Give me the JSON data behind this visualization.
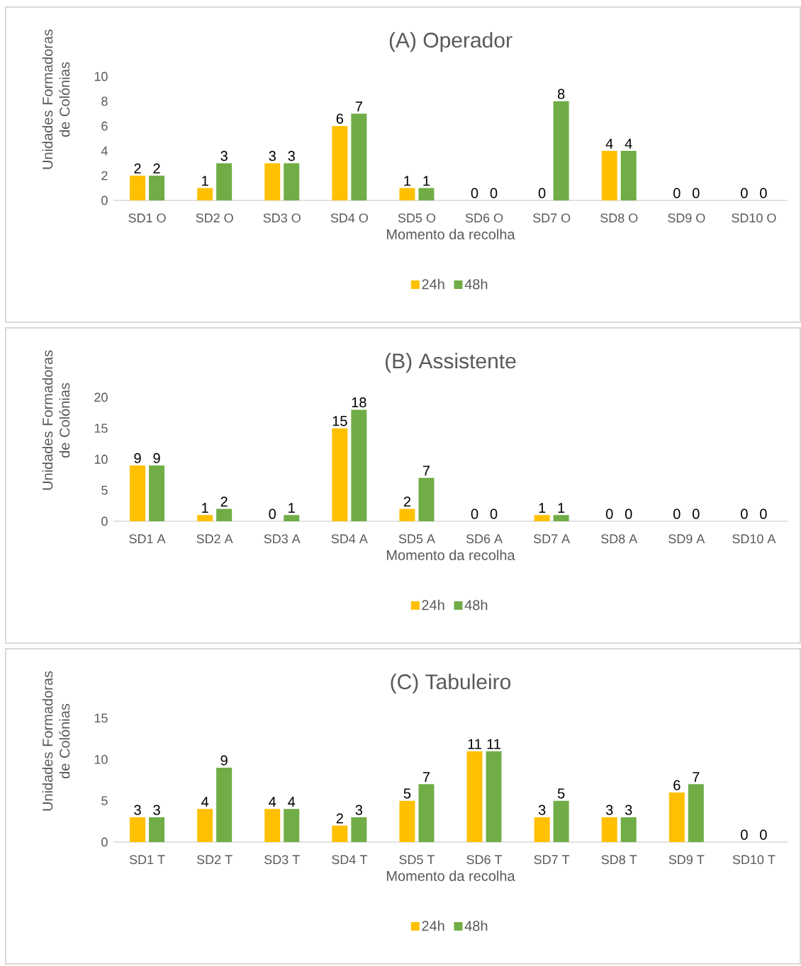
{
  "chart_data": [
    {
      "type": "bar",
      "title": "(A) Operador",
      "xlabel": "Momento da recolha",
      "ylabel": "Unidades Formadoras de Colónias",
      "categories": [
        "SD1 O",
        "SD2 O",
        "SD3 O",
        "SD4 O",
        "SD5 O",
        "SD6 O",
        "SD7 O",
        "SD8 O",
        "SD9 O",
        "SD10 O"
      ],
      "series": [
        {
          "name": "24h",
          "color": "#ffc000",
          "values": [
            2,
            1,
            3,
            6,
            1,
            0,
            0,
            4,
            0,
            0
          ]
        },
        {
          "name": "48h",
          "color": "#70ad47",
          "values": [
            2,
            3,
            3,
            7,
            1,
            0,
            8,
            4,
            0,
            0
          ]
        }
      ],
      "ylim": [
        0,
        10
      ],
      "yticks": [
        0,
        2,
        4,
        6,
        8,
        10
      ],
      "data_labels": true,
      "legend": "bottom",
      "grid": false
    },
    {
      "type": "bar",
      "title": "(B) Assistente",
      "xlabel": "Momento da recolha",
      "ylabel": "Unidades Formadoras de Colónias",
      "categories": [
        "SD1 A",
        "SD2 A",
        "SD3 A",
        "SD4 A",
        "SD5 A",
        "SD6 A",
        "SD7 A",
        "SD8 A",
        "SD9 A",
        "SD10 A"
      ],
      "series": [
        {
          "name": "24h",
          "color": "#ffc000",
          "values": [
            9,
            1,
            0,
            15,
            2,
            0,
            1,
            0,
            0,
            0
          ]
        },
        {
          "name": "48h",
          "color": "#70ad47",
          "values": [
            9,
            2,
            1,
            18,
            7,
            0,
            1,
            0,
            0,
            0
          ]
        }
      ],
      "ylim": [
        0,
        20
      ],
      "yticks": [
        0,
        5,
        10,
        15,
        20
      ],
      "data_labels": true,
      "legend": "bottom",
      "grid": false
    },
    {
      "type": "bar",
      "title": "(C) Tabuleiro",
      "xlabel": "Momento da recolha",
      "ylabel": "Unidades Formadoras de Colónias",
      "categories": [
        "SD1 T",
        "SD2 T",
        "SD3 T",
        "SD4 T",
        "SD5 T",
        "SD6 T",
        "SD7 T",
        "SD8 T",
        "SD9 T",
        "SD10 T"
      ],
      "series": [
        {
          "name": "24h",
          "color": "#ffc000",
          "values": [
            3,
            4,
            4,
            2,
            5,
            11,
            3,
            3,
            6,
            0
          ]
        },
        {
          "name": "48h",
          "color": "#70ad47",
          "values": [
            3,
            9,
            4,
            3,
            7,
            11,
            5,
            3,
            7,
            0
          ]
        }
      ],
      "ylim": [
        0,
        15
      ],
      "yticks": [
        0,
        5,
        10,
        15
      ],
      "data_labels": true,
      "legend": "bottom",
      "grid": false
    }
  ]
}
